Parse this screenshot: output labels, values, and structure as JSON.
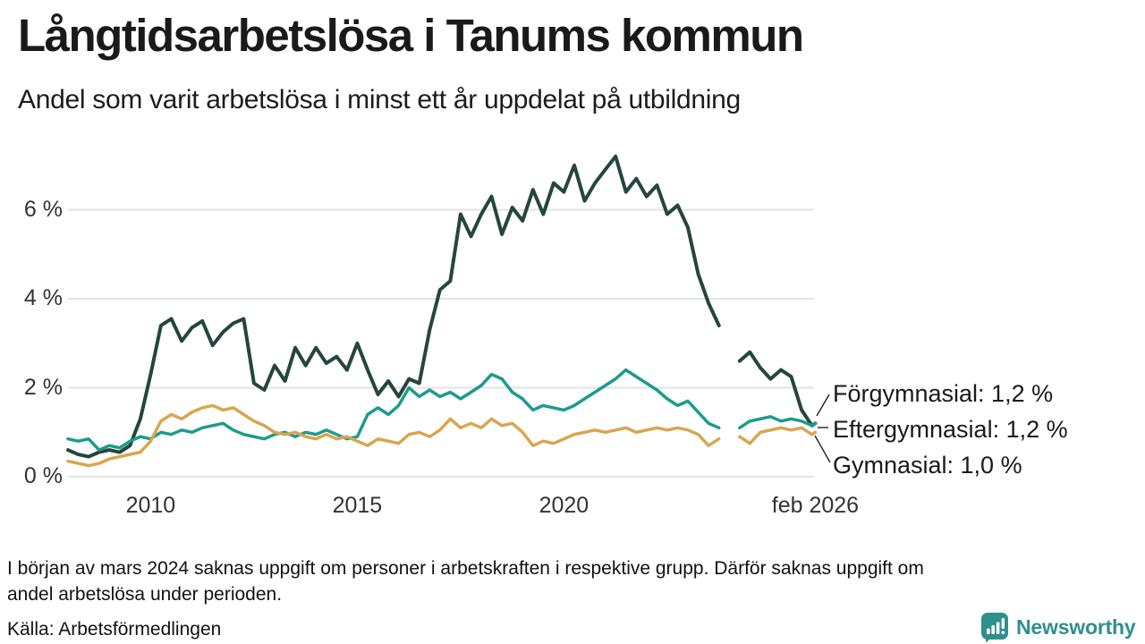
{
  "chart_data": {
    "type": "line",
    "title": "Långtidsarbetslösa i Tanums kommun",
    "subtitle": "Andel som varit arbetslösa i minst ett år uppdelat på utbildning",
    "x_unit": "year (decimal, quarterly samples; null = data missing around mars 2024)",
    "ylim": [
      0,
      7.45
    ],
    "grid": true,
    "x": [
      2008,
      2008.25,
      2008.5,
      2008.75,
      2009,
      2009.25,
      2009.5,
      2009.75,
      2010,
      2010.25,
      2010.5,
      2010.75,
      2011,
      2011.25,
      2011.5,
      2011.75,
      2012,
      2012.25,
      2012.5,
      2012.75,
      2013,
      2013.25,
      2013.5,
      2013.75,
      2014,
      2014.25,
      2014.5,
      2014.75,
      2015,
      2015.25,
      2015.5,
      2015.75,
      2016,
      2016.25,
      2016.5,
      2016.75,
      2017,
      2017.25,
      2017.5,
      2017.75,
      2018,
      2018.25,
      2018.5,
      2018.75,
      2019,
      2019.25,
      2019.5,
      2019.75,
      2020,
      2020.25,
      2020.5,
      2020.75,
      2021,
      2021.25,
      2021.5,
      2021.75,
      2022,
      2022.25,
      2022.5,
      2022.75,
      2023,
      2023.25,
      2023.5,
      2023.75,
      2024,
      2024.25,
      2024.5,
      2024.75,
      2025,
      2025.25,
      2025.5,
      2025.75,
      2026,
      2026.083
    ],
    "series": [
      {
        "name": "Förgymnasial",
        "color": "#25463f",
        "end_value_label": "1,2 %",
        "values": [
          0.6,
          0.5,
          0.45,
          0.55,
          0.6,
          0.55,
          0.7,
          1.3,
          2.3,
          3.4,
          3.55,
          3.05,
          3.35,
          3.5,
          2.95,
          3.25,
          3.45,
          3.55,
          2.1,
          1.95,
          2.5,
          2.15,
          2.9,
          2.5,
          2.9,
          2.55,
          2.7,
          2.4,
          3.0,
          2.4,
          1.85,
          2.15,
          1.8,
          2.2,
          2.1,
          3.3,
          4.2,
          4.4,
          5.9,
          5.4,
          5.9,
          6.3,
          5.45,
          6.05,
          5.75,
          6.45,
          5.9,
          6.6,
          6.4,
          7.0,
          6.2,
          6.6,
          6.9,
          7.2,
          6.4,
          6.7,
          6.3,
          6.55,
          5.9,
          6.1,
          5.6,
          4.55,
          3.9,
          3.4,
          null,
          2.6,
          2.8,
          2.45,
          2.2,
          2.4,
          2.25,
          1.5,
          1.15,
          1.2
        ]
      },
      {
        "name": "Eftergymnasial",
        "color": "#1d9b8b",
        "end_value_label": "1,2 %",
        "values": [
          0.85,
          0.8,
          0.85,
          0.6,
          0.7,
          0.65,
          0.8,
          0.9,
          0.85,
          1.0,
          0.95,
          1.05,
          1.0,
          1.1,
          1.15,
          1.2,
          1.05,
          0.95,
          0.9,
          0.85,
          0.95,
          1.0,
          0.9,
          1.0,
          0.95,
          1.05,
          0.95,
          0.85,
          0.9,
          1.4,
          1.55,
          1.4,
          1.6,
          2.0,
          1.8,
          1.95,
          1.8,
          1.9,
          1.75,
          1.9,
          2.05,
          2.3,
          2.2,
          1.9,
          1.75,
          1.5,
          1.6,
          1.55,
          1.5,
          1.6,
          1.75,
          1.9,
          2.05,
          2.2,
          2.4,
          2.25,
          2.1,
          1.95,
          1.75,
          1.6,
          1.7,
          1.45,
          1.2,
          1.1,
          null,
          1.1,
          1.25,
          1.3,
          1.35,
          1.25,
          1.3,
          1.25,
          1.15,
          1.2
        ]
      },
      {
        "name": "Gymnasial",
        "color": "#d9a54f",
        "end_value_label": "1,0 %",
        "values": [
          0.35,
          0.3,
          0.25,
          0.3,
          0.4,
          0.45,
          0.5,
          0.55,
          0.8,
          1.25,
          1.4,
          1.3,
          1.45,
          1.55,
          1.6,
          1.5,
          1.55,
          1.4,
          1.25,
          1.15,
          1.0,
          0.95,
          1.0,
          0.9,
          0.85,
          0.95,
          0.85,
          0.9,
          0.8,
          0.7,
          0.85,
          0.8,
          0.75,
          0.95,
          1.0,
          0.9,
          1.05,
          1.3,
          1.1,
          1.2,
          1.1,
          1.3,
          1.15,
          1.2,
          1.0,
          0.7,
          0.8,
          0.75,
          0.85,
          0.95,
          1.0,
          1.05,
          1.0,
          1.05,
          1.1,
          1.0,
          1.05,
          1.1,
          1.05,
          1.1,
          1.05,
          0.95,
          0.7,
          0.85,
          null,
          0.9,
          0.75,
          1.0,
          1.05,
          1.1,
          1.05,
          1.1,
          0.95,
          1.0
        ]
      }
    ],
    "y_ticks": [
      {
        "value": 0,
        "label": "0 %"
      },
      {
        "value": 2,
        "label": "2 %"
      },
      {
        "value": 4,
        "label": "4 %"
      },
      {
        "value": 6,
        "label": "6 %"
      }
    ],
    "x_ticks": [
      {
        "value": 2010,
        "label": "2010"
      },
      {
        "value": 2015,
        "label": "2015"
      },
      {
        "value": 2020,
        "label": "2020"
      },
      {
        "value": 2026.083,
        "label": "feb 2026"
      }
    ],
    "annotations": [
      {
        "text": "Förgymnasial: 1,2 %"
      },
      {
        "text": "Eftergymnasial: 1,2 %"
      },
      {
        "text": "Gymnasial: 1,0 %"
      }
    ],
    "legend_position": "end-of-line labels, right side"
  },
  "footer": {
    "note_line1": "I början av mars 2024 saknas uppgift om personer i arbetskraften i respektive grupp. Därför saknas uppgift om",
    "note_line2": "andel arbetslösa under perioden.",
    "source": "Källa: Arbetsförmedlingen",
    "brand": "Newsworthy",
    "brand_color": "#2f8f8d"
  }
}
